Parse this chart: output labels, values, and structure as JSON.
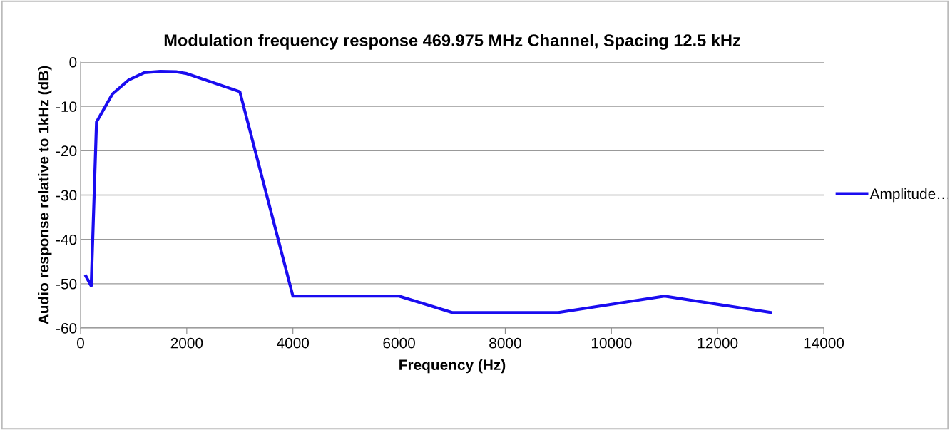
{
  "chart_data": {
    "type": "line",
    "title": "Modulation frequency response 469.975 MHz Channel, Spacing 12.5 kHz",
    "xlabel": "Frequency (Hz)",
    "ylabel": "Audio response relative to 1kHz (dB)",
    "x": [
      100,
      200,
      300,
      600,
      900,
      1200,
      1500,
      1800,
      2000,
      3000,
      4000,
      6000,
      7000,
      9000,
      11000,
      13000
    ],
    "series": [
      {
        "name": "Amplitude…",
        "color": "#1a0cf0",
        "values": [
          -48.3,
          -50.5,
          -13.5,
          -7.2,
          -4.1,
          -2.4,
          -2.1,
          -2.2,
          -2.6,
          -6.7,
          -52.8,
          -52.8,
          -56.5,
          -56.5,
          -52.8,
          -56.5
        ]
      }
    ],
    "xlim": [
      0,
      14000
    ],
    "xticks": [
      0,
      2000,
      4000,
      6000,
      8000,
      10000,
      12000,
      14000
    ],
    "ylim": [
      -60,
      0
    ],
    "yticks": [
      -60,
      -50,
      -40,
      -30,
      -20,
      -10,
      0
    ],
    "grid": "y",
    "legend": "right",
    "marker": "none",
    "line_style": "solid"
  }
}
